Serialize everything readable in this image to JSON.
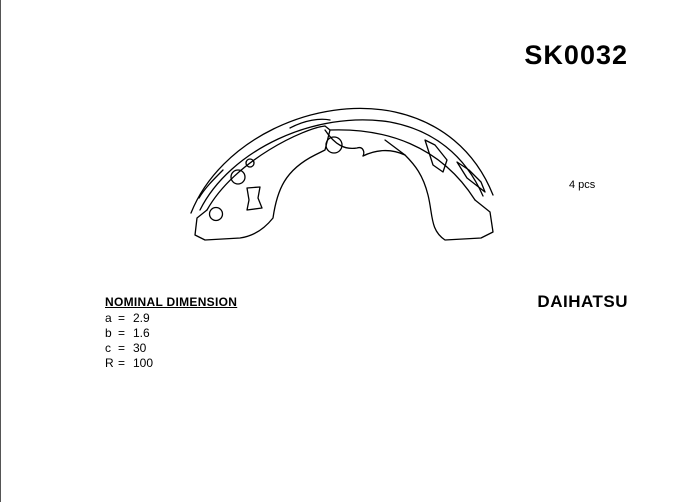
{
  "part_number": "SK0032",
  "quantity": "4 pcs",
  "brand": "DAIHATSU",
  "dimensions": {
    "title": "NOMINAL DIMENSION",
    "rows": [
      {
        "key": "a",
        "eq": "=",
        "value": "2.9"
      },
      {
        "key": "b",
        "eq": "=",
        "value": "1.6"
      },
      {
        "key": "c",
        "eq": "=",
        "value": "30"
      },
      {
        "key": "R",
        "eq": "=",
        "value": "100"
      }
    ]
  },
  "drawing": {
    "stroke_color": "#000000",
    "fill_color": "#ffffff"
  }
}
